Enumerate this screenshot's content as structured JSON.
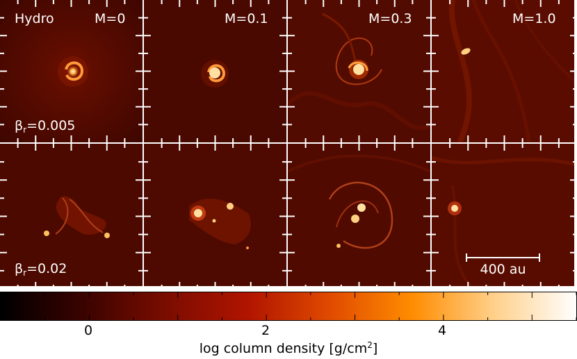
{
  "figure": {
    "columns": [
      "M=0",
      "M=0.1",
      "M=0.3",
      "M=1.0"
    ],
    "rows": [
      {
        "beta_symbol": "β",
        "beta_sub": "r",
        "beta_value": "=0.005"
      },
      {
        "beta_symbol": "β",
        "beta_sub": "r",
        "beta_value": "=0.02"
      }
    ],
    "hydro_label": "Hydro",
    "scale_bar_label": "400 au"
  },
  "colorbar": {
    "ticks": [
      "0",
      "2",
      "4"
    ],
    "tick_values": [
      0,
      2,
      4
    ],
    "range": [
      -1,
      5.5
    ],
    "label_prefix": "log column density [g/cm",
    "label_sup": "2",
    "label_suffix": "]",
    "colors": [
      "#000000",
      "#3a0300",
      "#7a0c00",
      "#b01400",
      "#e04a00",
      "#ff8c00",
      "#ffd08a",
      "#ffffff"
    ]
  }
}
